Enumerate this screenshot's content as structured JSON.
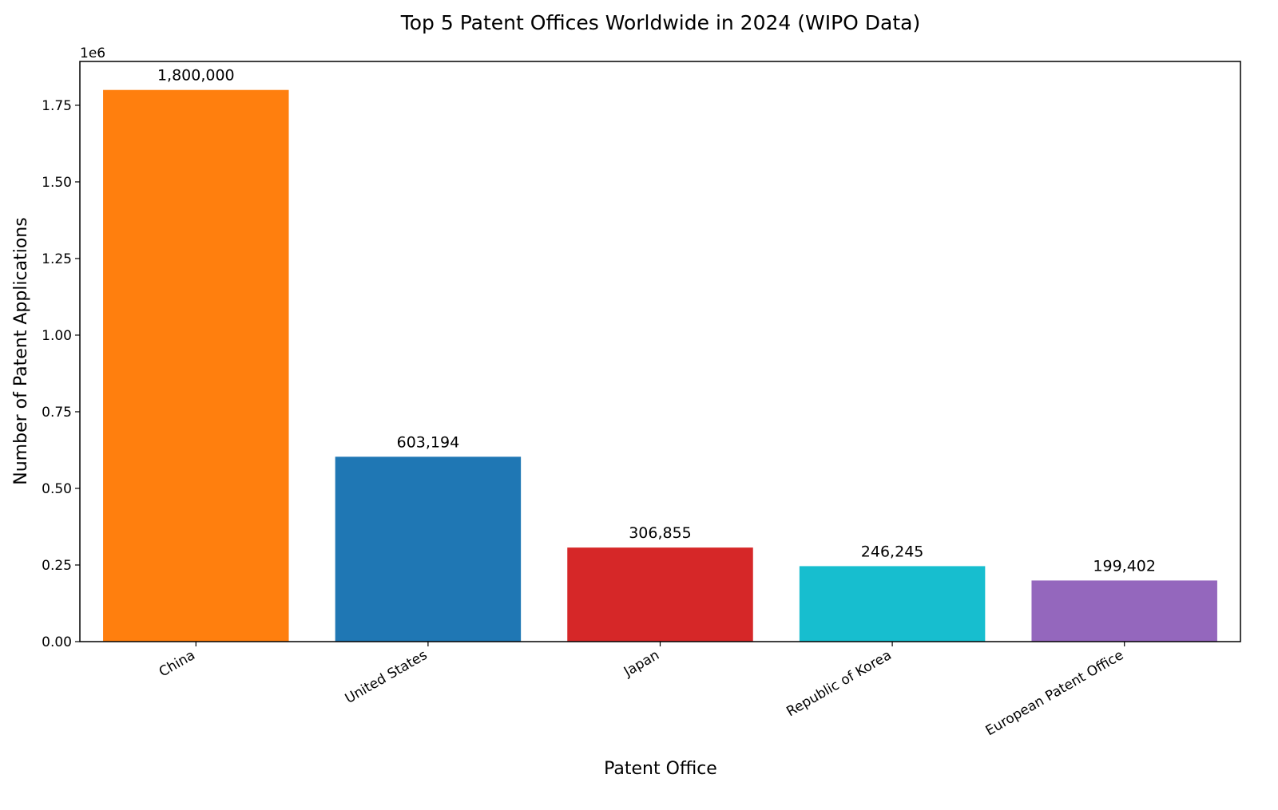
{
  "chart_data": {
    "type": "bar",
    "title": "Top 5 Patent Offices Worldwide in 2024 (WIPO Data)",
    "xlabel": "Patent Office",
    "ylabel": "Number of Patent Applications",
    "offset_label": "1e6",
    "categories": [
      "China",
      "United States",
      "Japan",
      "Republic of Korea",
      "European Patent Office"
    ],
    "values": [
      1800000,
      603194,
      306855,
      246245,
      199402
    ],
    "data_labels": [
      "1,800,000",
      "603,194",
      "306,855",
      "246,245",
      "199,402"
    ],
    "colors": [
      "#ff7f0e",
      "#1f77b4",
      "#d62728",
      "#17becf",
      "#9467bd"
    ],
    "ylim": [
      0,
      1893000
    ],
    "yticks": [
      0,
      250000,
      500000,
      750000,
      1000000,
      1250000,
      1500000,
      1750000
    ],
    "ytick_labels": [
      "0.00",
      "0.25",
      "0.50",
      "0.75",
      "1.00",
      "1.25",
      "1.50",
      "1.75"
    ],
    "grid": false,
    "legend": "none"
  }
}
